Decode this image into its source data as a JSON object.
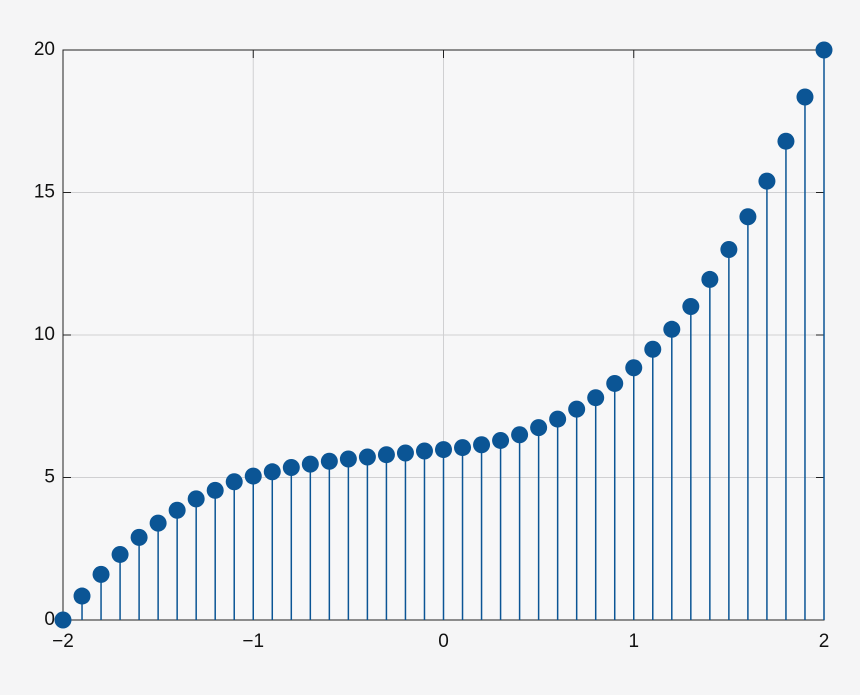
{
  "chart_data": {
    "type": "stem",
    "x": [
      -2,
      -1.9,
      -1.8,
      -1.7,
      -1.6,
      -1.5,
      -1.4,
      -1.3,
      -1.2,
      -1.1,
      -1,
      -0.9,
      -0.8,
      -0.7,
      -0.6,
      -0.5,
      -0.4,
      -0.3,
      -0.2,
      -0.1,
      0,
      0.1,
      0.2,
      0.3,
      0.4,
      0.5,
      0.6,
      0.7,
      0.8,
      0.9,
      1,
      1.1,
      1.2,
      1.3,
      1.4,
      1.5,
      1.6,
      1.7,
      1.8,
      1.9,
      2
    ],
    "values": [
      0,
      0.84,
      1.6,
      2.3,
      2.9,
      3.4,
      3.85,
      4.25,
      4.55,
      4.85,
      5.05,
      5.2,
      5.35,
      5.47,
      5.57,
      5.65,
      5.72,
      5.8,
      5.86,
      5.93,
      5.98,
      6.05,
      6.15,
      6.3,
      6.5,
      6.75,
      7.05,
      7.4,
      7.8,
      8.3,
      8.85,
      9.5,
      10.2,
      11.0,
      11.95,
      13.0,
      14.15,
      15.4,
      16.8,
      18.35,
      20
    ],
    "color": "#0b5595",
    "xlim": [
      -2,
      2
    ],
    "ylim": [
      0,
      20
    ],
    "xticks": [
      {
        "value": -2,
        "label": "−2"
      },
      {
        "value": -1,
        "label": "−1"
      },
      0,
      1,
      2
    ],
    "yticks": [
      0,
      5,
      10,
      15,
      20
    ],
    "grid": true
  }
}
